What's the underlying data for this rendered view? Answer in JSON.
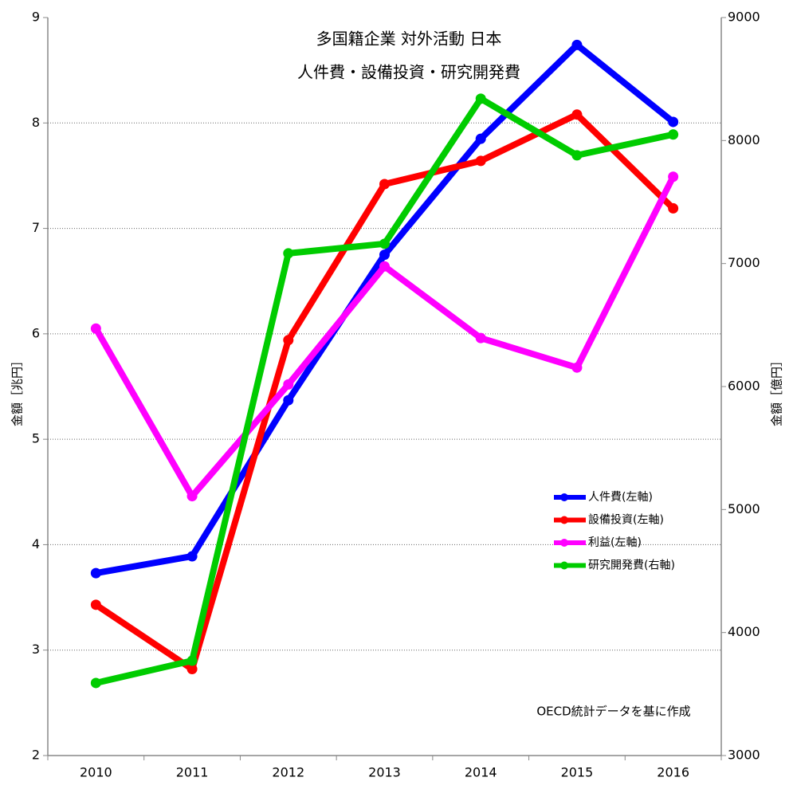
{
  "chart_data": {
    "type": "line",
    "title": "多国籍企業 対外活動 日本",
    "subtitle": "人件費・設備投資・研究開発費",
    "y_label": "金額［兆円］",
    "y2_label": "金額［億円］",
    "annotation": "OECD統計データを基に作成",
    "categories": [
      "2010",
      "2011",
      "2012",
      "2013",
      "2014",
      "2015",
      "2016"
    ],
    "series": [
      {
        "name": "人件費(左軸)",
        "color": "#0000ff",
        "values": [
          3.73,
          3.89,
          5.37,
          6.75,
          7.85,
          8.74,
          8.01
        ]
      },
      {
        "name": "設備投資(左軸)",
        "color": "#ff0000",
        "values": [
          3.43,
          2.82,
          5.94,
          7.42,
          7.64,
          8.08,
          7.19
        ]
      },
      {
        "name": "利益(左軸)",
        "color": "#ff00ff",
        "values": [
          6.05,
          4.46,
          5.52,
          6.64,
          5.96,
          5.68,
          7.49
        ]
      },
      {
        "name": "研究開発費(右軸)",
        "color": "#00cc00",
        "axis": "y2",
        "values": [
          3590,
          3771,
          7083,
          7161,
          8340,
          7880,
          8049
        ]
      }
    ],
    "ylim": [
      2,
      9
    ],
    "yticks": [
      2,
      3,
      4,
      5,
      6,
      7,
      8,
      9
    ],
    "y2lim": [
      3000,
      9000
    ],
    "y2ticks": [
      3000,
      4000,
      5000,
      6000,
      7000,
      8000,
      9000
    ],
    "grid": true
  }
}
